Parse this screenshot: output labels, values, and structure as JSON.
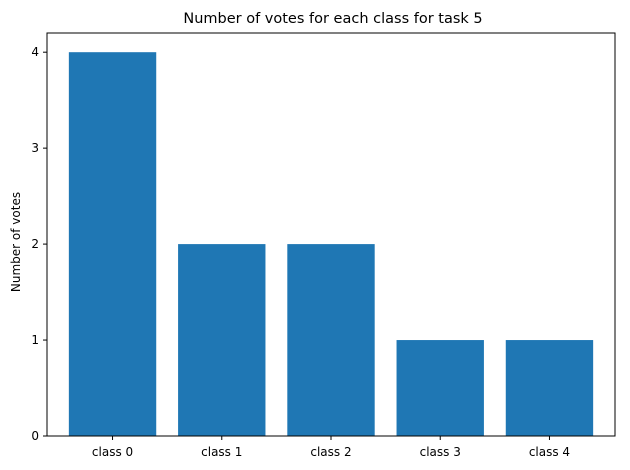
{
  "chart_data": {
    "type": "bar",
    "title": "Number of votes for each class for task 5",
    "xlabel": "",
    "ylabel": "Number of votes",
    "categories": [
      "class 0",
      "class 1",
      "class 2",
      "class 3",
      "class 4"
    ],
    "values": [
      4,
      2,
      2,
      1,
      1
    ],
    "yticks": [
      "0",
      "1",
      "2",
      "3",
      "4"
    ],
    "ylim": [
      0,
      4.2
    ],
    "bar_color": "#1f77b4",
    "grid": false,
    "legend": "none"
  }
}
